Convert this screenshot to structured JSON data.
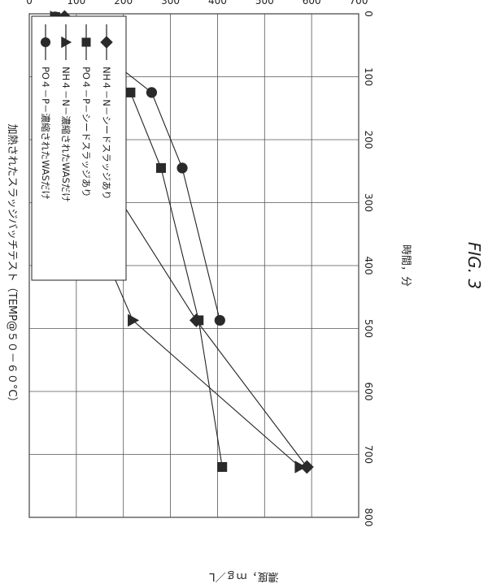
{
  "chart_data": {
    "type": "line",
    "title": "加熱されたスラッジバッチテスト（TEMP@５０－６０°C）",
    "xlabel": "時間，分",
    "ylabel": "濃度，ｍｇ／L",
    "xlim": [
      0,
      800
    ],
    "ylim": [
      0,
      700
    ],
    "xticks": [
      "0",
      "100",
      "200",
      "300",
      "400",
      "500",
      "600",
      "700",
      "800"
    ],
    "yticks": [
      "0",
      "100",
      "200",
      "300",
      "400",
      "500",
      "600",
      "700"
    ],
    "grid": true,
    "legend_position": "top-left",
    "orientation": "rotated-90-clockwise",
    "figure_label": "FIG. 3",
    "series": [
      {
        "name": "PO４－P－濃縮されたWASだけ",
        "marker": "circle",
        "x": [
          5,
          125,
          245,
          487
        ],
        "y": [
          55,
          260,
          325,
          405
        ]
      },
      {
        "name": "NH４－N－濃縮されたWASだけ",
        "marker": "triangle",
        "x": [
          5,
          125,
          245,
          487,
          720
        ],
        "y": [
          55,
          75,
          80,
          220,
          575
        ]
      },
      {
        "name": "PO４－P－シードスラッジあり",
        "marker": "square",
        "x": [
          5,
          125,
          245,
          487,
          720
        ],
        "y": [
          55,
          215,
          280,
          360,
          410
        ]
      },
      {
        "name": "NH４－N－シードスラッジあり",
        "marker": "diamond",
        "x": [
          5,
          125,
          245,
          487,
          720
        ],
        "y": [
          75,
          135,
          150,
          355,
          590
        ]
      }
    ]
  }
}
